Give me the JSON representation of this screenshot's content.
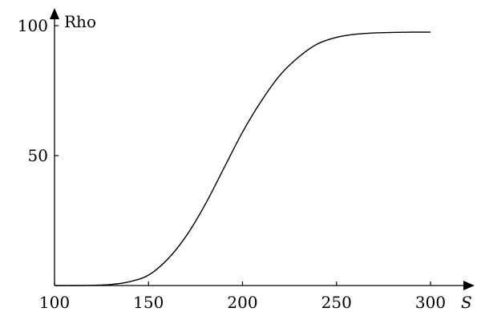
{
  "chart_data": {
    "type": "line",
    "title": "",
    "xlabel": "S",
    "ylabel": "Rho",
    "xlim": [
      100,
      300
    ],
    "ylim": [
      0,
      100
    ],
    "x_ticks": [
      {
        "value": 100,
        "label": "100"
      },
      {
        "value": 150,
        "label": "150"
      },
      {
        "value": 200,
        "label": "200"
      },
      {
        "value": 250,
        "label": "250"
      },
      {
        "value": 300,
        "label": "300"
      }
    ],
    "y_ticks": [
      {
        "value": 50,
        "label": "50"
      },
      {
        "value": 100,
        "label": "100"
      }
    ],
    "grid": false,
    "series": [
      {
        "color": "#000000",
        "x": [
          100,
          110,
          120,
          130,
          140,
          150,
          160,
          170,
          180,
          190,
          200,
          210,
          220,
          230,
          240,
          250,
          260,
          270,
          280,
          290,
          300
        ],
        "y": [
          0,
          0,
          0.1,
          0.4,
          1.5,
          4,
          10,
          19,
          31,
          45,
          59,
          71,
          81,
          88,
          93,
          95.5,
          96.7,
          97.2,
          97.4,
          97.5,
          97.5
        ]
      }
    ]
  }
}
